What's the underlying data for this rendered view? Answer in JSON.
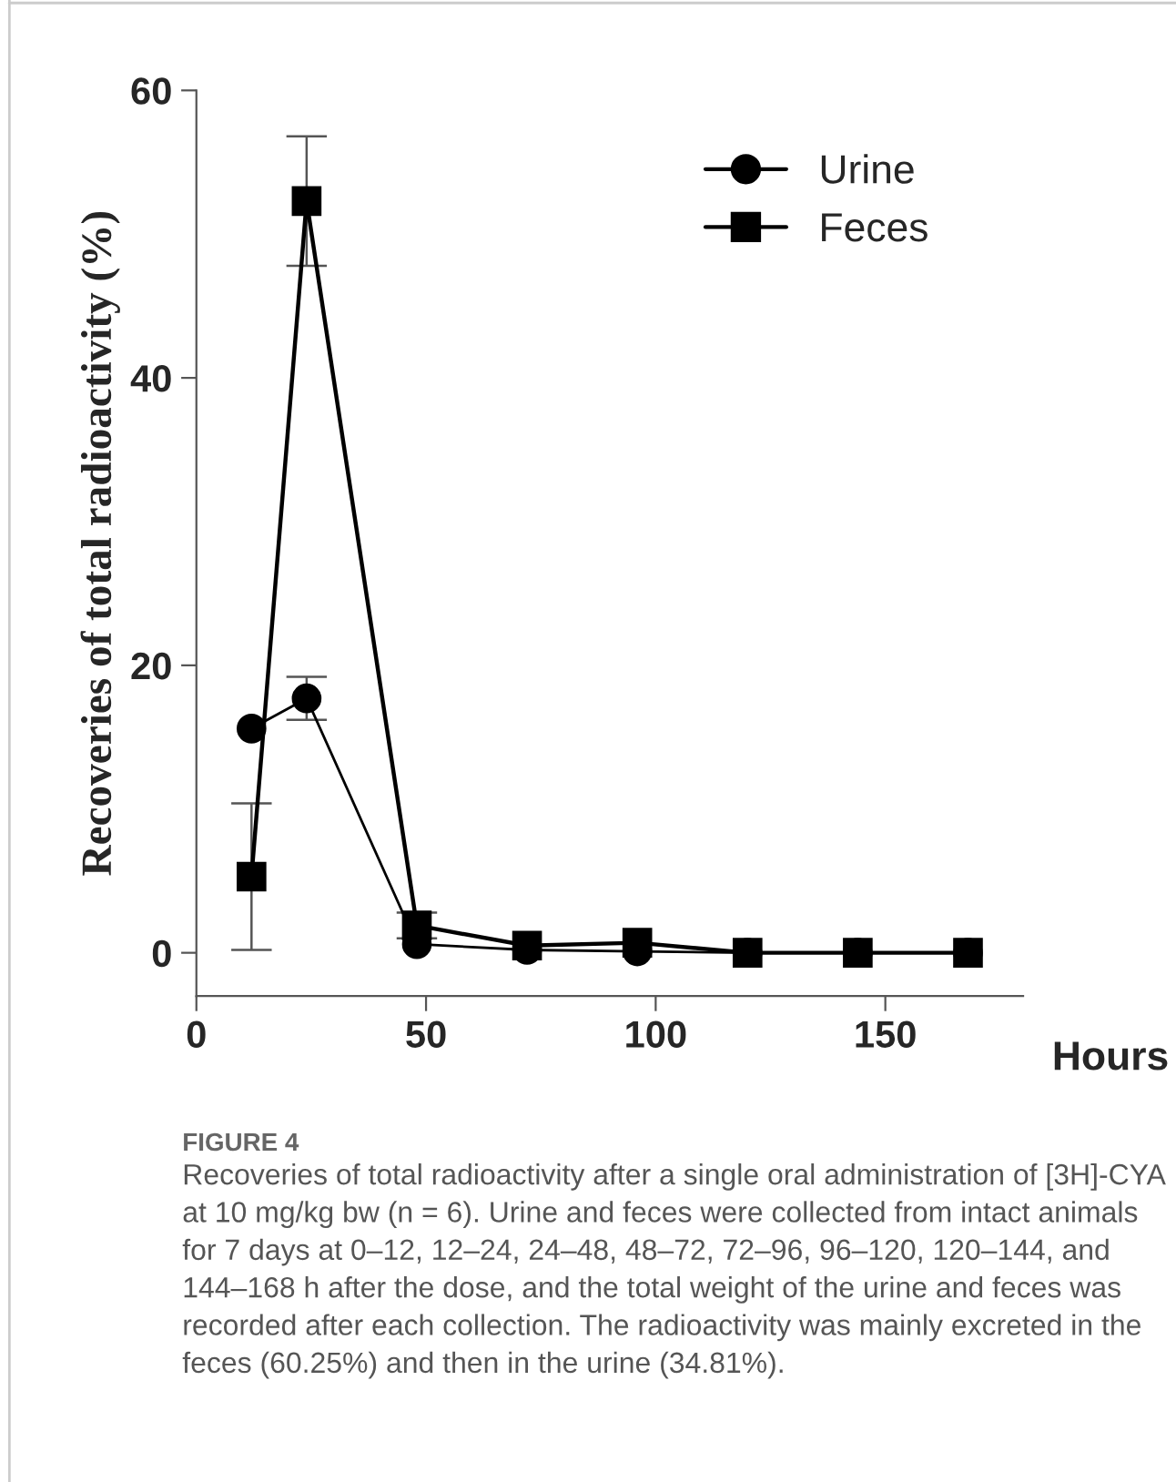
{
  "chart_data": {
    "type": "line",
    "x": [
      12,
      24,
      48,
      72,
      96,
      120,
      144,
      168
    ],
    "series": [
      {
        "name": "Urine",
        "color": "#000000",
        "marker": "circle",
        "values": [
          15.6,
          17.7,
          0.6,
          0.2,
          0.1,
          0,
          0,
          0
        ],
        "errors": [
          null,
          1.5,
          null,
          null,
          null,
          null,
          null,
          null
        ]
      },
      {
        "name": "Feces",
        "color": "#000000",
        "marker": "square",
        "values": [
          5.3,
          52.3,
          1.9,
          0.5,
          0.7,
          0,
          0,
          0
        ],
        "errors": [
          5.1,
          4.5,
          0.9,
          null,
          null,
          null,
          null,
          null
        ]
      }
    ],
    "xlabel": "Hours",
    "ylabel": "Recoveries of total radioactivity (%)",
    "xlim": [
      0,
      180
    ],
    "xticks": [
      0,
      50,
      100,
      150
    ],
    "ylim": [
      -3,
      60
    ],
    "yticks": [
      0,
      20,
      40,
      60
    ],
    "grid": false,
    "legend": "top right",
    "line_style": "solid",
    "annotations": [
      "FIGURE 4",
      "Recoveries of total radioactivity after a single oral administration of [3H]-CYA at 10 mg/kg bw (n = 6). Urine and feces were collected from intact animals for 7 days at 0–12, 12–24, 24–48, 48–72, 72–96, 96–120, 120–144, and 144–168 h after the dose, and the total weight of the urine and feces was recorded after each collection. The radioactivity was mainly excreted in the feces (60.25%) and then in the urine (34.81%)."
    ]
  }
}
